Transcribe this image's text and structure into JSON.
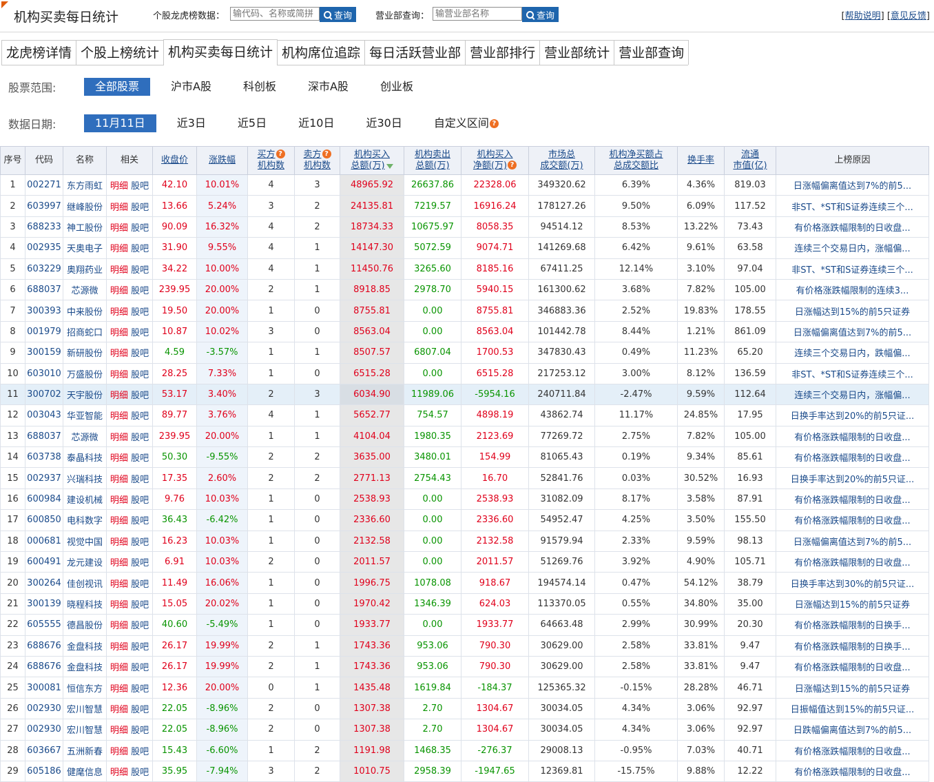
{
  "header": {
    "title": "机构买卖每日统计",
    "stock_search_label": "个股龙虎榜数据：",
    "stock_search_placeholder": "输代码、名称或简拼",
    "search_btn": "查询",
    "branch_search_label": "营业部查询：",
    "branch_search_placeholder": "输营业部名称",
    "help": "帮助说明",
    "feedback": "意见反馈",
    "lb": "[",
    "mid": "]  [",
    "rb": "]"
  },
  "tabs": [
    "龙虎榜详情",
    "个股上榜统计",
    "机构买卖每日统计",
    "机构席位追踪",
    "每日活跃营业部",
    "营业部排行",
    "营业部统计",
    "营业部查询"
  ],
  "filters": {
    "scope_label": "股票范围:",
    "scope": [
      "全部股票",
      "沪市A股",
      "科创板",
      "深市A股",
      "创业板"
    ],
    "date_label": "数据日期:",
    "dates": [
      "11月11日",
      "近3日",
      "近5日",
      "近10日",
      "近30日",
      "自定义区间"
    ]
  },
  "table": {
    "headers": [
      {
        "l1": "序号",
        "l2": ""
      },
      {
        "l1": "代码",
        "l2": ""
      },
      {
        "l1": "名称",
        "l2": ""
      },
      {
        "l1": "相关",
        "l2": ""
      },
      {
        "l1": "收盘价",
        "l2": ""
      },
      {
        "l1": "涨跌幅",
        "l2": ""
      },
      {
        "l1": "买方",
        "l2": "机构数"
      },
      {
        "l1": "卖方",
        "l2": "机构数"
      },
      {
        "l1": "机构买入",
        "l2": "总额(万)"
      },
      {
        "l1": "机构卖出",
        "l2": "总额(万)"
      },
      {
        "l1": "机构买入",
        "l2": "净额(万)"
      },
      {
        "l1": "市场总",
        "l2": "成交额(万)"
      },
      {
        "l1": "机构净买额占",
        "l2": "总成交额比"
      },
      {
        "l1": "换手率",
        "l2": ""
      },
      {
        "l1": "流通",
        "l2": "市值(亿)"
      },
      {
        "l1": "上榜原因",
        "l2": ""
      }
    ],
    "rel_detail": "明细",
    "rel_forum": "股吧",
    "rows": [
      [
        "1",
        "002271",
        "东方雨虹",
        "42.10",
        "10.01%",
        "4",
        "3",
        "48965.92",
        "26637.86",
        "22328.06",
        "349320.62",
        "6.39%",
        "4.36%",
        "819.03",
        "日涨幅偏离值达到7%的前5..."
      ],
      [
        "2",
        "603997",
        "继峰股份",
        "13.66",
        "5.24%",
        "3",
        "2",
        "24135.81",
        "7219.57",
        "16916.24",
        "178127.26",
        "9.50%",
        "6.09%",
        "117.52",
        "非ST、*ST和S证券连续三个..."
      ],
      [
        "3",
        "688233",
        "神工股份",
        "90.09",
        "16.32%",
        "4",
        "2",
        "18734.33",
        "10675.97",
        "8058.35",
        "94514.12",
        "8.53%",
        "13.22%",
        "73.43",
        "有价格涨跌幅限制的日收盘..."
      ],
      [
        "4",
        "002935",
        "天奥电子",
        "31.90",
        "9.55%",
        "4",
        "1",
        "14147.30",
        "5072.59",
        "9074.71",
        "141269.68",
        "6.42%",
        "9.61%",
        "63.58",
        "连续三个交易日内，涨幅偏..."
      ],
      [
        "5",
        "603229",
        "奥翔药业",
        "34.22",
        "10.00%",
        "4",
        "1",
        "11450.76",
        "3265.60",
        "8185.16",
        "67411.25",
        "12.14%",
        "3.10%",
        "97.04",
        "非ST、*ST和S证券连续三个..."
      ],
      [
        "6",
        "688037",
        "芯源微",
        "239.95",
        "20.00%",
        "2",
        "1",
        "8918.85",
        "2978.70",
        "5940.15",
        "161300.62",
        "3.68%",
        "7.82%",
        "105.00",
        "有价格涨跌幅限制的连续3..."
      ],
      [
        "7",
        "300393",
        "中来股份",
        "19.50",
        "20.00%",
        "1",
        "0",
        "8755.81",
        "0.00",
        "8755.81",
        "346883.36",
        "2.52%",
        "19.83%",
        "178.55",
        "日涨幅达到15%的前5只证券"
      ],
      [
        "8",
        "001979",
        "招商蛇口",
        "10.87",
        "10.02%",
        "3",
        "0",
        "8563.04",
        "0.00",
        "8563.04",
        "101442.78",
        "8.44%",
        "1.21%",
        "861.09",
        "日涨幅偏离值达到7%的前5..."
      ],
      [
        "9",
        "300159",
        "新研股份",
        "4.59",
        "-3.57%",
        "1",
        "1",
        "8507.57",
        "6807.04",
        "1700.53",
        "347830.43",
        "0.49%",
        "11.23%",
        "65.20",
        "连续三个交易日内，跌幅偏..."
      ],
      [
        "10",
        "603010",
        "万盛股份",
        "28.25",
        "7.33%",
        "1",
        "0",
        "6515.28",
        "0.00",
        "6515.28",
        "217253.12",
        "3.00%",
        "8.12%",
        "136.59",
        "非ST、*ST和S证券连续三个..."
      ],
      [
        "11",
        "300702",
        "天宇股份",
        "53.17",
        "3.40%",
        "2",
        "3",
        "6034.90",
        "11989.06",
        "-5954.16",
        "240711.84",
        "-2.47%",
        "9.59%",
        "112.64",
        "连续三个交易日内，涨幅偏..."
      ],
      [
        "12",
        "003043",
        "华亚智能",
        "89.77",
        "3.76%",
        "4",
        "1",
        "5652.77",
        "754.57",
        "4898.19",
        "43862.74",
        "11.17%",
        "24.85%",
        "17.95",
        "日换手率达到20%的前5只证..."
      ],
      [
        "13",
        "688037",
        "芯源微",
        "239.95",
        "20.00%",
        "1",
        "1",
        "4104.04",
        "1980.35",
        "2123.69",
        "77269.72",
        "2.75%",
        "7.82%",
        "105.00",
        "有价格涨跌幅限制的日收盘..."
      ],
      [
        "14",
        "603738",
        "泰晶科技",
        "50.30",
        "-9.55%",
        "2",
        "2",
        "3635.00",
        "3480.01",
        "154.99",
        "81065.43",
        "0.19%",
        "9.34%",
        "85.61",
        "有价格涨跌幅限制的日收盘..."
      ],
      [
        "15",
        "002937",
        "兴瑞科技",
        "17.35",
        "2.60%",
        "2",
        "2",
        "2771.13",
        "2754.43",
        "16.70",
        "52841.76",
        "0.03%",
        "30.52%",
        "16.93",
        "日换手率达到20%的前5只证..."
      ],
      [
        "16",
        "600984",
        "建设机械",
        "9.76",
        "10.03%",
        "1",
        "0",
        "2538.93",
        "0.00",
        "2538.93",
        "31082.09",
        "8.17%",
        "3.58%",
        "87.91",
        "有价格涨跌幅限制的日收盘..."
      ],
      [
        "17",
        "600850",
        "电科数字",
        "36.43",
        "-6.42%",
        "1",
        "0",
        "2336.60",
        "0.00",
        "2336.60",
        "54952.47",
        "4.25%",
        "3.50%",
        "155.50",
        "有价格涨跌幅限制的日收盘..."
      ],
      [
        "18",
        "000681",
        "视觉中国",
        "16.23",
        "10.03%",
        "1",
        "0",
        "2132.58",
        "0.00",
        "2132.58",
        "91579.94",
        "2.33%",
        "9.59%",
        "98.13",
        "日涨幅偏离值达到7%的前5..."
      ],
      [
        "19",
        "600491",
        "龙元建设",
        "6.91",
        "10.03%",
        "2",
        "0",
        "2011.57",
        "0.00",
        "2011.57",
        "51269.76",
        "3.92%",
        "4.90%",
        "105.71",
        "有价格涨跌幅限制的日收盘..."
      ],
      [
        "20",
        "300264",
        "佳创视讯",
        "11.49",
        "16.06%",
        "1",
        "0",
        "1996.75",
        "1078.08",
        "918.67",
        "194574.14",
        "0.47%",
        "54.12%",
        "38.79",
        "日换手率达到30%的前5只证..."
      ],
      [
        "21",
        "300139",
        "晓程科技",
        "15.05",
        "20.02%",
        "1",
        "0",
        "1970.42",
        "1346.39",
        "624.03",
        "113370.05",
        "0.55%",
        "34.80%",
        "35.00",
        "日涨幅达到15%的前5只证券"
      ],
      [
        "22",
        "605555",
        "德昌股份",
        "40.60",
        "-5.49%",
        "1",
        "0",
        "1933.77",
        "0.00",
        "1933.77",
        "64663.48",
        "2.99%",
        "30.99%",
        "20.30",
        "有价格涨跌幅限制的日换手..."
      ],
      [
        "23",
        "688676",
        "金盘科技",
        "26.17",
        "19.99%",
        "2",
        "1",
        "1743.36",
        "953.06",
        "790.30",
        "30629.00",
        "2.58%",
        "33.81%",
        "9.47",
        "有价格涨跌幅限制的日换手..."
      ],
      [
        "24",
        "688676",
        "金盘科技",
        "26.17",
        "19.99%",
        "2",
        "1",
        "1743.36",
        "953.06",
        "790.30",
        "30629.00",
        "2.58%",
        "33.81%",
        "9.47",
        "有价格涨跌幅限制的日收盘..."
      ],
      [
        "25",
        "300081",
        "恒信东方",
        "12.36",
        "20.00%",
        "0",
        "1",
        "1435.48",
        "1619.84",
        "-184.37",
        "125365.32",
        "-0.15%",
        "28.28%",
        "46.71",
        "日涨幅达到15%的前5只证券"
      ],
      [
        "26",
        "002930",
        "宏川智慧",
        "22.05",
        "-8.96%",
        "2",
        "0",
        "1307.38",
        "2.70",
        "1304.67",
        "30034.05",
        "4.34%",
        "3.06%",
        "92.97",
        "日振幅值达到15%的前5只证..."
      ],
      [
        "27",
        "002930",
        "宏川智慧",
        "22.05",
        "-8.96%",
        "2",
        "0",
        "1307.38",
        "2.70",
        "1304.67",
        "30034.05",
        "4.34%",
        "3.06%",
        "92.97",
        "日跌幅偏离值达到7%的前5..."
      ],
      [
        "28",
        "603667",
        "五洲新春",
        "15.43",
        "-6.60%",
        "1",
        "2",
        "1191.98",
        "1468.35",
        "-276.37",
        "29008.13",
        "-0.95%",
        "7.03%",
        "40.71",
        "有价格涨跌幅限制的日收盘..."
      ],
      [
        "29",
        "605186",
        "健麾信息",
        "35.95",
        "-7.94%",
        "3",
        "2",
        "1010.75",
        "2958.39",
        "-1947.65",
        "12369.81",
        "-15.75%",
        "9.88%",
        "12.22",
        "有价格涨跌幅限制的日收盘..."
      ]
    ]
  },
  "colors": {
    "up": "#e0001b",
    "down": "#089400",
    "link": "#1a4a8a",
    "accent": "#2f6ebd"
  }
}
